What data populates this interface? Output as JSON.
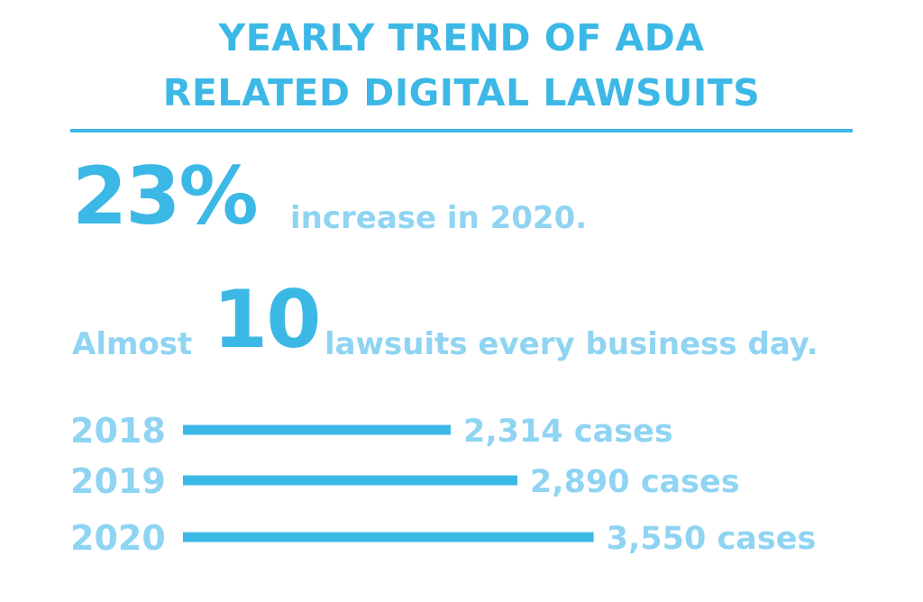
{
  "colors": {
    "dark_blue": "#3cb8e6",
    "light_blue": "#8fd4f2"
  },
  "title_line1": "YEARLY TREND OF ADA",
  "title_line2": "RELATED DIGITAL LAWSUITS",
  "stats": {
    "pct_value": "23%",
    "pct_text": "increase in 2020.",
    "almost_prefix": "Almost",
    "daily_value": "10",
    "daily_text": "lawsuits every business day."
  },
  "chart_data": {
    "type": "bar",
    "orientation": "horizontal",
    "categories": [
      "2018",
      "2019",
      "2020"
    ],
    "values": [
      2314,
      2890,
      3550
    ],
    "data_labels": [
      "2,314 cases",
      "2,890 cases",
      "3,550 cases"
    ],
    "title": "YEARLY TREND OF ADA RELATED DIGITAL LAWSUITS",
    "xlabel": "",
    "ylabel": "",
    "grid": false
  }
}
